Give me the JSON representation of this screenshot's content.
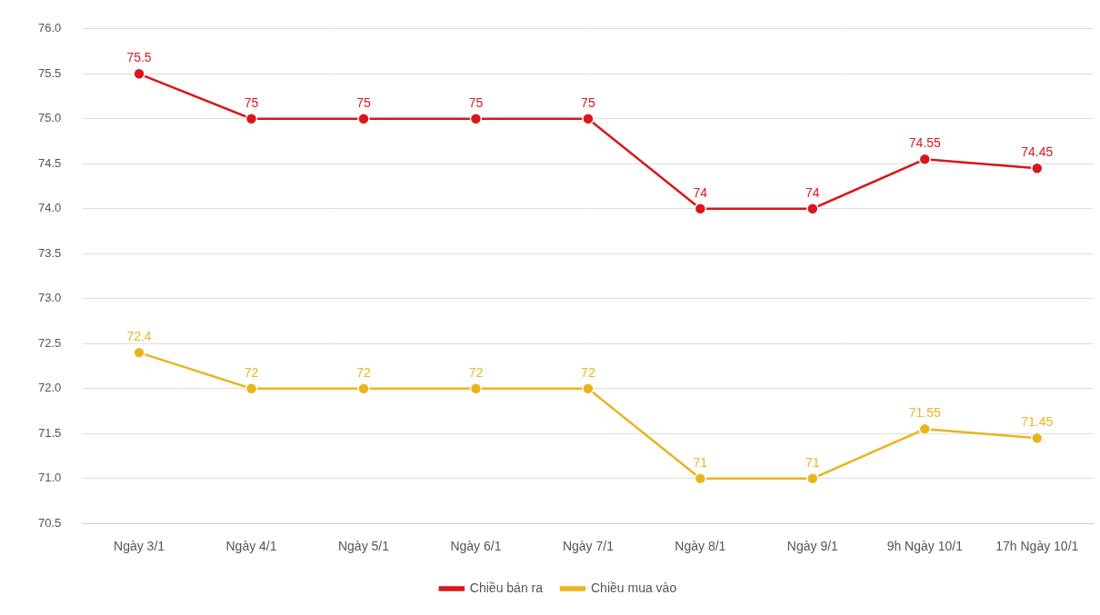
{
  "chart_data": {
    "type": "line",
    "categories": [
      "Ngày 3/1",
      "Ngày 4/1",
      "Ngày 5/1",
      "Ngày 6/1",
      "Ngày 7/1",
      "Ngày 8/1",
      "Ngày 9/1",
      "9h Ngày 10/1",
      "17h Ngày 10/1"
    ],
    "series": [
      {
        "name": "Chiều bán ra",
        "color": "#d8171c",
        "marker": "circle",
        "values": [
          75.5,
          75,
          75,
          75,
          75,
          74,
          74,
          74.55,
          74.45
        ]
      },
      {
        "name": "Chiều mua vào",
        "color": "#e9b51f",
        "marker": "circle",
        "values": [
          72.4,
          72,
          72,
          72,
          72,
          71,
          71,
          71.55,
          71.45
        ]
      }
    ],
    "ylim": [
      70.5,
      76.0
    ],
    "yticks": [
      70.5,
      {
        "value": 71,
        "label": "71.0"
      },
      71.5,
      {
        "value": 72,
        "label": "72.0"
      },
      72.5,
      {
        "value": 73,
        "label": "73.0"
      },
      73.5,
      {
        "value": 74,
        "label": "74.0"
      },
      74.5,
      {
        "value": 75,
        "label": "75.0"
      },
      75.5,
      {
        "value": 76,
        "label": "76.0"
      }
    ],
    "grid": true,
    "legend": "bottom",
    "data_labels": true
  }
}
